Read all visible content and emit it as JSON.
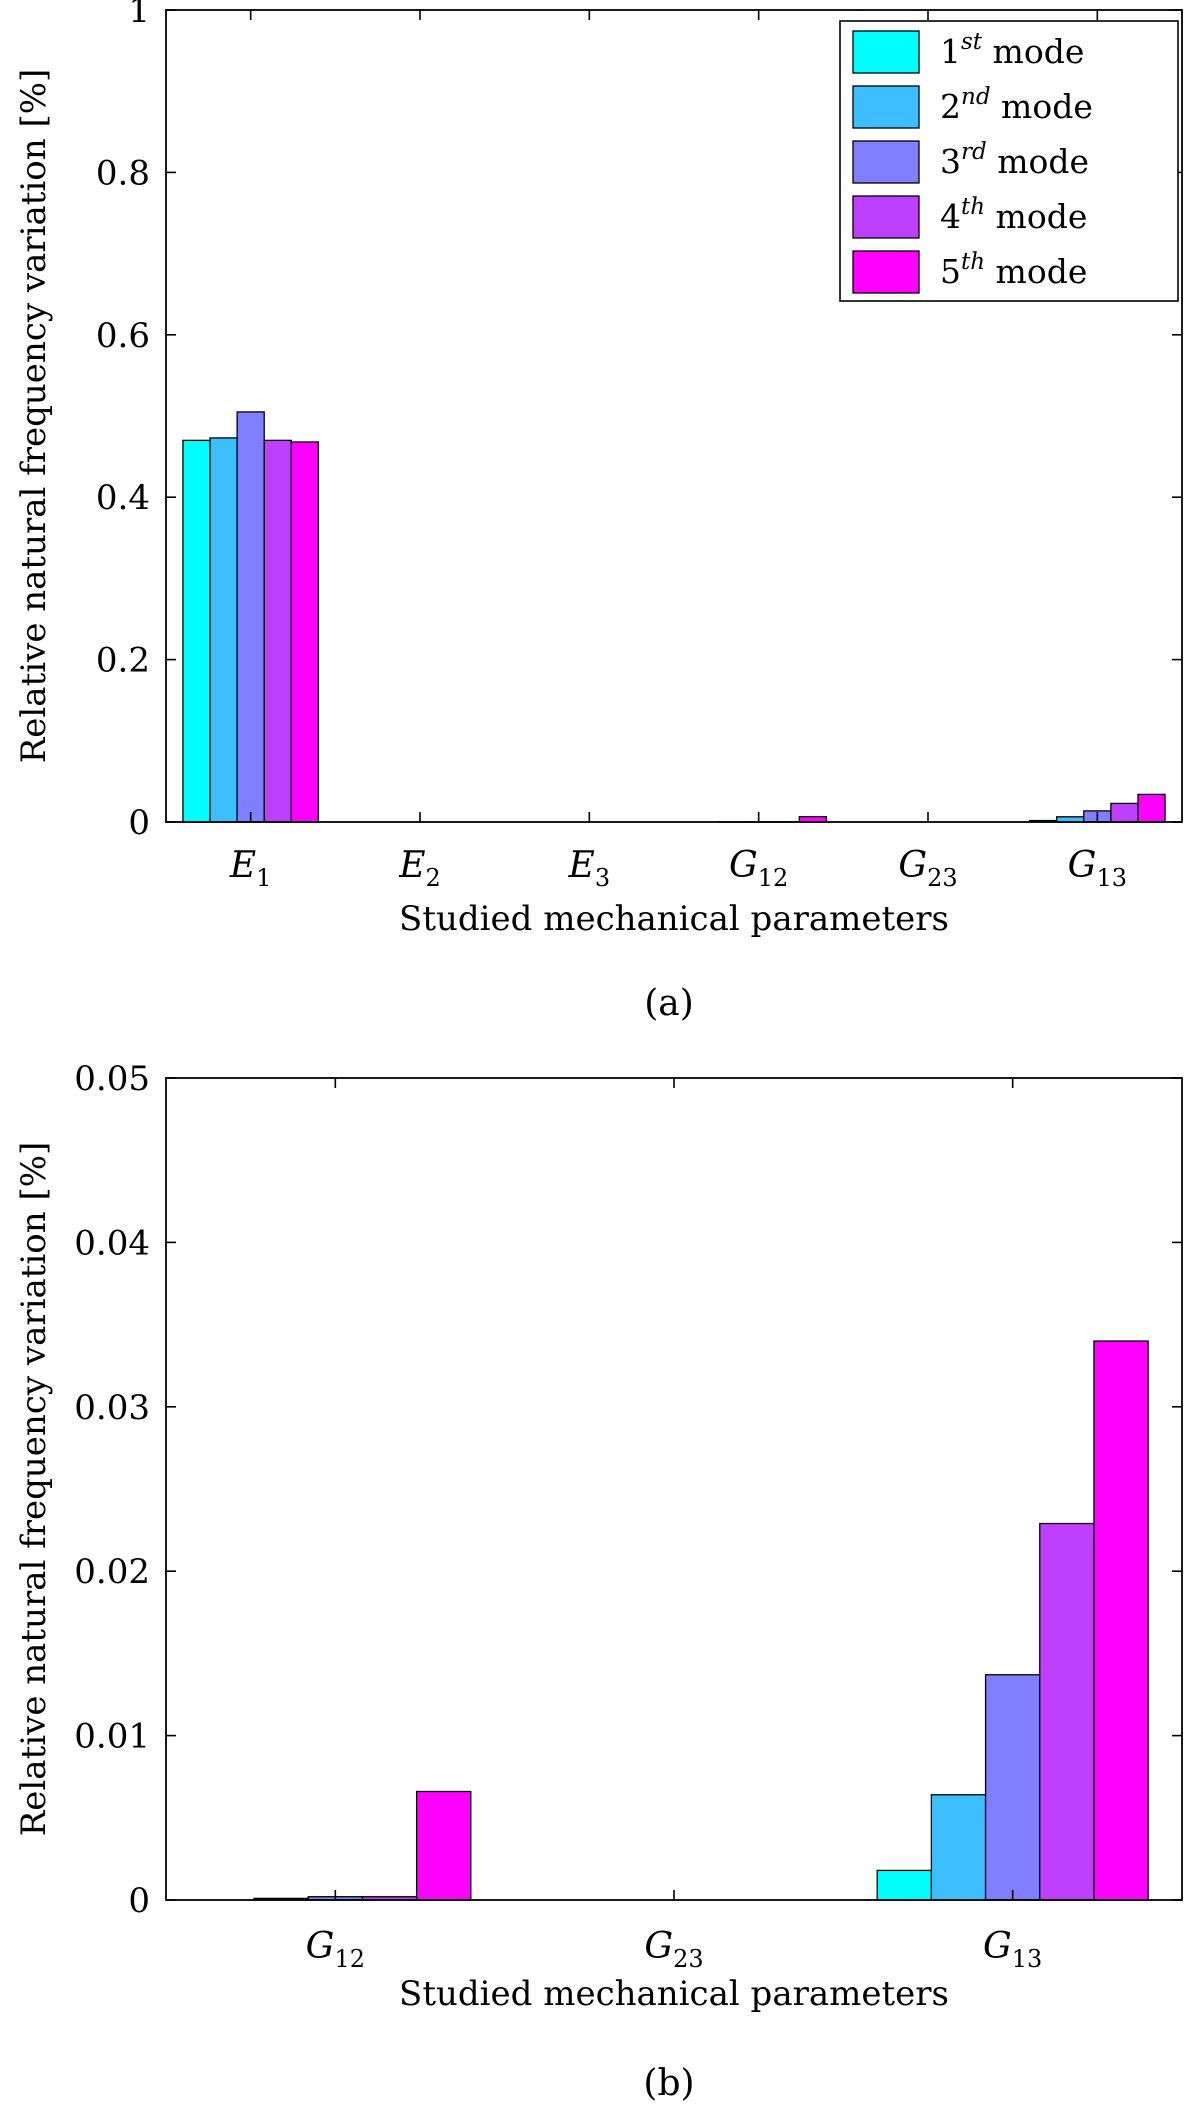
{
  "chart_data": [
    {
      "panel": "(a)",
      "type": "bar",
      "xlabel": "Studied mechanical parameters",
      "ylabel": "Relative natural frequency variation [%]",
      "ylim": [
        0,
        1
      ],
      "yticks": [
        "0",
        "0.2",
        "0.4",
        "0.6",
        "0.8",
        "1"
      ],
      "categories": [
        {
          "main": "E",
          "sub": "1"
        },
        {
          "main": "E",
          "sub": "2"
        },
        {
          "main": "E",
          "sub": "3"
        },
        {
          "main": "G",
          "sub": "12"
        },
        {
          "main": "G",
          "sub": "23"
        },
        {
          "main": "G",
          "sub": "13"
        }
      ],
      "series": [
        {
          "name": {
            "base": "1",
            "sup": "st",
            "suffix": " mode"
          },
          "color": "#00FFFF",
          "values": [
            0.47,
            0.0,
            0.0,
            0.0,
            0.0,
            0.0018
          ]
        },
        {
          "name": {
            "base": "2",
            "sup": "nd",
            "suffix": " mode"
          },
          "color": "#3DBFFF",
          "values": [
            0.473,
            0.0,
            0.0,
            0.0001,
            0.0,
            0.0064
          ]
        },
        {
          "name": {
            "base": "3",
            "sup": "rd",
            "suffix": " mode"
          },
          "color": "#7F7FFF",
          "values": [
            0.505,
            0.0,
            0.0,
            0.0002,
            0.0,
            0.0137
          ]
        },
        {
          "name": {
            "base": "4",
            "sup": "th",
            "suffix": " mode"
          },
          "color": "#BF3FFF",
          "values": [
            0.47,
            0.0,
            0.0,
            0.0002,
            0.0,
            0.0229
          ]
        },
        {
          "name": {
            "base": "5",
            "sup": "th",
            "suffix": " mode"
          },
          "color": "#FF00FF",
          "values": [
            0.468,
            0.0,
            0.0,
            0.0066,
            0.0,
            0.034
          ]
        }
      ],
      "legend": "top-right",
      "grid": false
    },
    {
      "panel": "(b)",
      "type": "bar",
      "xlabel": "Studied mechanical parameters",
      "ylabel": "Relative natural frequency variation [%]",
      "ylim": [
        0,
        0.05
      ],
      "yticks": [
        "0",
        "0.01",
        "0.02",
        "0.03",
        "0.04",
        "0.05"
      ],
      "categories": [
        {
          "main": "G",
          "sub": "12"
        },
        {
          "main": "G",
          "sub": "23"
        },
        {
          "main": "G",
          "sub": "13"
        }
      ],
      "series": [
        {
          "color": "#00FFFF",
          "values": [
            0.0,
            0.0,
            0.0018
          ]
        },
        {
          "color": "#3DBFFF",
          "values": [
            0.0001,
            0.0,
            0.0064
          ]
        },
        {
          "color": "#7F7FFF",
          "values": [
            0.0002,
            0.0,
            0.0137
          ]
        },
        {
          "color": "#BF3FFF",
          "values": [
            0.0002,
            0.0,
            0.0229
          ]
        },
        {
          "color": "#FF00FF",
          "values": [
            0.0066,
            0.0,
            0.034
          ]
        }
      ],
      "legend": "none",
      "grid": false
    }
  ]
}
